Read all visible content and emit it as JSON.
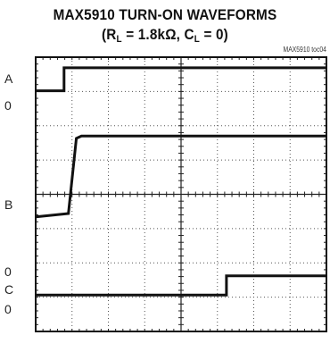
{
  "title_line1": "MAX5910 TURN-ON WAVEFORMS",
  "title_line2": {
    "open": "(R",
    "r_sub": "L",
    "r_val": " = 1.8kΩ, C",
    "c_sub": "L",
    "close": " = 0)"
  },
  "toc_label": "MAX5910 toc04",
  "channel_labels": {
    "a": "A",
    "a_zero": "0",
    "b": "B",
    "b_zero": "0",
    "c": "C",
    "c_zero": "0"
  },
  "chart_data": {
    "type": "line",
    "grid": true,
    "divisions": {
      "x": 8,
      "y": 8
    },
    "xlim": [
      0,
      8
    ],
    "ylim": [
      0,
      8
    ],
    "series": [
      {
        "x": [
          0,
          0.78,
          0.78,
          8
        ],
        "y": [
          7.02,
          7.02,
          7.69,
          7.69
        ],
        "color": "#111111"
      },
      {
        "x": [
          0,
          0.9,
          1.12,
          1.26,
          8
        ],
        "y": [
          3.34,
          3.44,
          5.63,
          5.7,
          5.7
        ],
        "color": "#111111"
      },
      {
        "x": [
          0,
          5.25,
          5.25,
          8
        ],
        "y": [
          1.06,
          1.06,
          1.62,
          1.62
        ],
        "color": "#111111"
      }
    ]
  }
}
